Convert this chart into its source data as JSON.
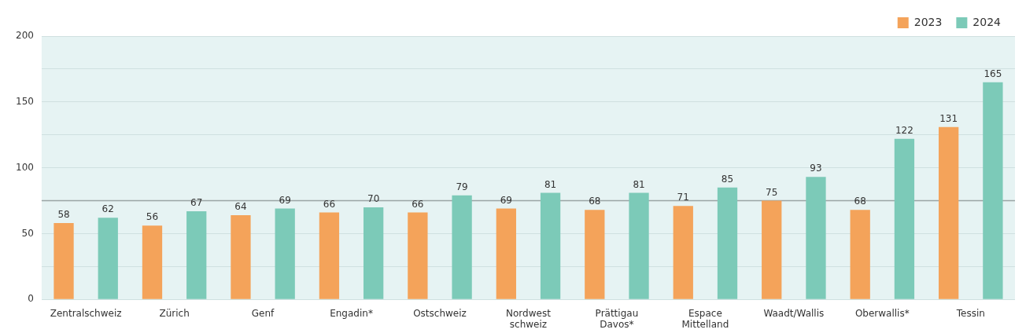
{
  "chart_data": {
    "type": "bar",
    "categories": [
      "Zentralschweiz",
      "Zürich",
      "Genf",
      "Engadin*",
      "Ostschweiz",
      "Nordwest schweiz",
      "Prättigau Davos*",
      "Espace Mittelland",
      "Waadt/Wallis",
      "Oberwallis*",
      "Tessin"
    ],
    "series": [
      {
        "name": "2023",
        "color": "#f4a35a",
        "values": [
          58,
          56,
          64,
          66,
          66,
          69,
          68,
          71,
          75,
          68,
          131
        ]
      },
      {
        "name": "2024",
        "color": "#7ccab8",
        "values": [
          62,
          67,
          69,
          70,
          79,
          81,
          81,
          85,
          93,
          122,
          165
        ]
      }
    ],
    "ylim": [
      0,
      200
    ],
    "yticks": [
      0,
      {
        "value": 25,
        "label": null
      },
      50,
      {
        "value": 75,
        "label": null
      },
      100,
      {
        "value": 125,
        "label": null
      },
      150,
      {
        "value": 175,
        "label": null
      },
      200
    ],
    "ref_lines": [
      {
        "axis": "y",
        "value": 75,
        "color": "#9aa5a5"
      }
    ],
    "grid": "y",
    "legend": "top right",
    "data_labels": true
  }
}
